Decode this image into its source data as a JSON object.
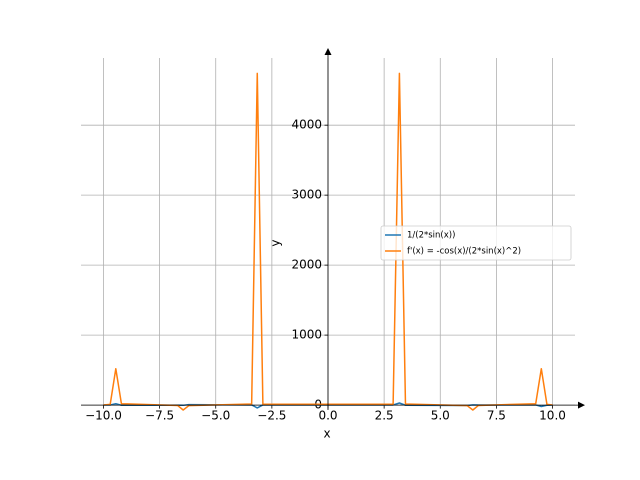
{
  "chart_data": {
    "type": "line",
    "xlabel": "x",
    "ylabel": "y",
    "x": [
      -10,
      -9.7,
      -9.45,
      -9.2,
      -6.7,
      -6.45,
      -6.2,
      -3.4,
      -3.15,
      -2.9,
      2.9,
      3.18,
      3.45,
      6.2,
      6.45,
      6.7,
      9.25,
      9.5,
      9.75,
      10
    ],
    "series": [
      {
        "name": "1/(2*sin(x))",
        "color": "#1f77b4",
        "values": [
          0.9,
          1.8,
          20,
          -2.2,
          -1.2,
          -3,
          6,
          2,
          -40,
          2,
          2,
          30,
          -2,
          -6,
          3,
          1.2,
          2.2,
          -20,
          -1.8,
          -0.9
        ]
      },
      {
        "name": "f'(x) = -cos(x)/(2*sin(x)^2)",
        "color": "#ff7f0e",
        "values": [
          1.4,
          10,
          520,
          20,
          -5,
          -70,
          -8,
          15,
          4740,
          12,
          12,
          4740,
          15,
          -8,
          -70,
          -5,
          20,
          520,
          10,
          1.4
        ]
      }
    ],
    "xlim": [
      -11,
      11
    ],
    "ylim": [
      -70,
      4960
    ],
    "xticks": [
      {
        "value": -10,
        "label": "−10.0"
      },
      {
        "value": -7.5,
        "label": "−7.5"
      },
      {
        "value": -5,
        "label": "−5.0"
      },
      {
        "value": -2.5,
        "label": "−2.5"
      },
      {
        "value": 0,
        "label": "0.0"
      },
      {
        "value": 2.5,
        "label": "2.5"
      },
      {
        "value": 5,
        "label": "5.0"
      },
      {
        "value": 7.5,
        "label": "7.5"
      },
      {
        "value": 10,
        "label": "10.0"
      }
    ],
    "yticks": [
      0,
      1000,
      2000,
      3000,
      4000
    ],
    "grid": true,
    "legend": "right"
  }
}
